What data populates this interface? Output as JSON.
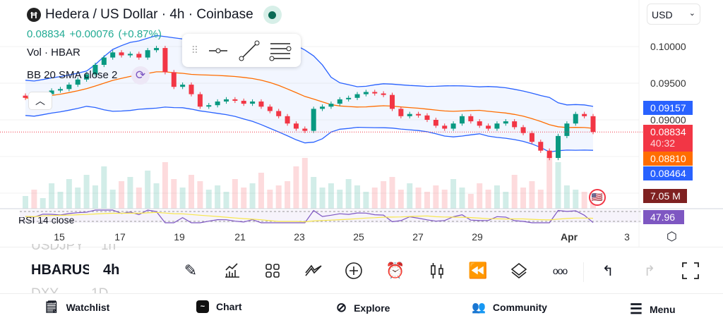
{
  "header": {
    "title": "Hedera / US Dollar · 4h · Coinbase",
    "last": "0.08834",
    "change": "+0.00076 (+0.87%)",
    "vol_label": "Vol · HBAR",
    "bb_label": "BB 20 SMA close 2",
    "rsi_label": "RSI 14 close"
  },
  "currency": "USD",
  "price_axis": [
    "0.10000",
    "0.09500",
    "0.09000"
  ],
  "tags": {
    "bb_upper": "0.09157",
    "price": "0.08834",
    "countdown": "40:32",
    "bb_mid": "0.08810",
    "bb_lower": "0.08464",
    "volume": "7.05 M",
    "rsi": "47.96"
  },
  "colors": {
    "up": "#089981",
    "down": "#f23645",
    "bb_upper": "#2962ff",
    "bb_mid": "#ff6d00",
    "rsi": "#7e57c2",
    "rsi_ma": "#f7e64a"
  },
  "time_axis": [
    "15",
    "17",
    "19",
    "21",
    "23",
    "25",
    "27",
    "29",
    "Apr",
    "3"
  ],
  "watchlist": {
    "prev": "USDJPY",
    "current": "HBARUSD",
    "next": "DXY",
    "prev_tf": "1h",
    "current_tf": "4h",
    "next_tf": "1D"
  },
  "nav": [
    "Watchlist",
    "Chart",
    "Explore",
    "Community",
    "Menu"
  ],
  "series": {
    "closes": [
      0.093,
      0.0928,
      0.0935,
      0.094,
      0.0942,
      0.0948,
      0.0955,
      0.0962,
      0.0975,
      0.0985,
      0.0992,
      0.0988,
      0.099,
      0.0985,
      0.0995,
      0.0998,
      0.0965,
      0.0945,
      0.0948,
      0.0935,
      0.0918,
      0.092,
      0.0925,
      0.0928,
      0.0926,
      0.0922,
      0.0925,
      0.0918,
      0.0912,
      0.0905,
      0.0895,
      0.0888,
      0.0885,
      0.0915,
      0.0918,
      0.0922,
      0.0928,
      0.093,
      0.0935,
      0.0938,
      0.0936,
      0.0934,
      0.0915,
      0.0905,
      0.0908,
      0.0906,
      0.09,
      0.0892,
      0.0888,
      0.0895,
      0.0905,
      0.0898,
      0.0892,
      0.0888,
      0.0895,
      0.0898,
      0.089,
      0.0882,
      0.087,
      0.0858,
      0.0848,
      0.0878,
      0.0895,
      0.0908,
      0.0905,
      0.08834
    ],
    "volumes": [
      6,
      9,
      5,
      12,
      8,
      14,
      10,
      16,
      11,
      20,
      9,
      13,
      15,
      10,
      18,
      12,
      22,
      14,
      10,
      16,
      13,
      9,
      11,
      8,
      14,
      10,
      12,
      17,
      9,
      11,
      13,
      20,
      24,
      15,
      10,
      12,
      9,
      14,
      11,
      8,
      10,
      13,
      15,
      9,
      12,
      10,
      8,
      11,
      9,
      14,
      10,
      7,
      12,
      9,
      11,
      8,
      16,
      10,
      13,
      9,
      25,
      22,
      11,
      9,
      8,
      7.05
    ]
  }
}
